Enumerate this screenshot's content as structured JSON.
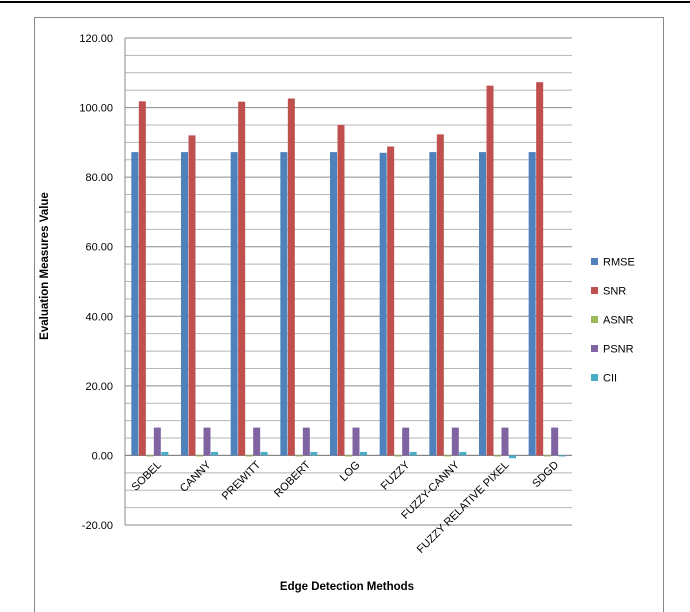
{
  "chart_data": {
    "type": "bar",
    "xlabel": "Edge Detection Methods",
    "ylabel": "Evaluation  Measures Value",
    "ylim": [
      -20,
      120
    ],
    "y_major_step": 20,
    "y_minor_step": 5,
    "y_tick_labels": [
      "-20.00",
      "0.00",
      "20.00",
      "40.00",
      "60.00",
      "80.00",
      "100.00",
      "120.00"
    ],
    "grid": true,
    "legend_position": "right",
    "categories": [
      "SOBEL",
      "CANNY",
      "PREWITT",
      "ROBERT",
      "LOG",
      "FUZZY",
      "FUZZY-CANNY",
      "FUZZY RELATIVE PIXEL",
      "SDGD"
    ],
    "series": [
      {
        "name": "RMSE",
        "color": "#4F81BD",
        "values": [
          87.2,
          87.2,
          87.2,
          87.2,
          87.2,
          87.0,
          87.2,
          87.2,
          87.2
        ]
      },
      {
        "name": "SNR",
        "color": "#C0504D",
        "values": [
          101.8,
          92.0,
          101.7,
          102.6,
          95.0,
          88.8,
          92.3,
          106.3,
          107.3
        ]
      },
      {
        "name": "ASNR",
        "color": "#9BBB59",
        "values": [
          -0.3,
          -0.3,
          -0.3,
          -0.3,
          -0.3,
          -0.3,
          -0.3,
          -0.3,
          -0.3
        ]
      },
      {
        "name": "PSNR",
        "color": "#8064A2",
        "values": [
          8.0,
          8.0,
          8.0,
          8.0,
          8.0,
          8.0,
          8.0,
          8.0,
          8.0
        ]
      },
      {
        "name": "CII",
        "color": "#4BACC6",
        "values": [
          1.0,
          1.0,
          1.0,
          1.0,
          1.0,
          1.0,
          1.0,
          -0.8,
          -0.3
        ]
      }
    ]
  }
}
